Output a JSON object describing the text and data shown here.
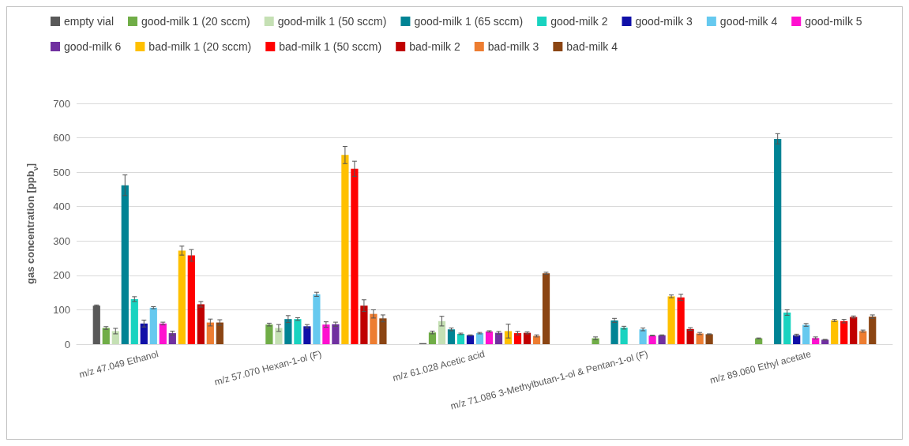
{
  "chart_data": {
    "type": "bar",
    "ylabel": "gas concentration [ppb$_{v}$]",
    "categories": [
      "m/z 47.049 Ethanol",
      "m/z 57.070 Hexan-1-ol (F)",
      "m/z 61.028 Acetic acid",
      "m/z 71.086 3-Methylbutan-1-ol & Pentan-1-ol (F)",
      "m/z 89.060 Ethyl acetate"
    ],
    "ylim": [
      0,
      700
    ],
    "yticks": [
      0,
      100,
      200,
      300,
      400,
      500,
      600,
      700
    ],
    "grid": "y",
    "legend": "top",
    "series": [
      {
        "name": "empty vial",
        "color": "#595959",
        "values": [
          112,
          null,
          3,
          null,
          null
        ],
        "errors": [
          2,
          null,
          null,
          null,
          null
        ]
      },
      {
        "name": "good-milk 1 (20 sccm)",
        "color": "#70ad47",
        "values": [
          47,
          57,
          34,
          17,
          17
        ],
        "errors": [
          4,
          4,
          4,
          4,
          1
        ]
      },
      {
        "name": "good-milk 1 (50 sccm)",
        "color": "#c5e0b4",
        "values": [
          38,
          47,
          67,
          null,
          null
        ],
        "errors": [
          8,
          10,
          14,
          null,
          null
        ]
      },
      {
        "name": "good-milk 1 (65 sccm)",
        "color": "#008394",
        "values": [
          462,
          73,
          43,
          69,
          597
        ],
        "errors": [
          30,
          10,
          4,
          6,
          15
        ]
      },
      {
        "name": "good-milk 2",
        "color": "#19d3c0",
        "values": [
          131,
          73,
          30,
          48,
          92
        ],
        "errors": [
          7,
          4,
          2,
          4,
          8
        ]
      },
      {
        "name": "good-milk 3",
        "color": "#1010a8",
        "values": [
          60,
          52,
          26,
          null,
          26
        ],
        "errors": [
          10,
          5,
          1,
          null,
          3
        ]
      },
      {
        "name": "good-milk 4",
        "color": "#66c9ef",
        "values": [
          106,
          145,
          32,
          43,
          56
        ],
        "errors": [
          3,
          6,
          2,
          4,
          4
        ]
      },
      {
        "name": "good-milk 5",
        "color": "#ff10d0",
        "values": [
          60,
          57,
          37,
          25,
          18
        ],
        "errors": [
          4,
          8,
          2,
          1,
          3
        ]
      },
      {
        "name": "good-milk 6",
        "color": "#7030a0",
        "values": [
          32,
          58,
          33,
          26,
          13
        ],
        "errors": [
          6,
          6,
          4,
          1,
          1
        ]
      },
      {
        "name": "bad-milk 1 (20 sccm)",
        "color": "#ffc000",
        "values": [
          272,
          550,
          38,
          139,
          69
        ],
        "errors": [
          13,
          25,
          20,
          4,
          3
        ]
      },
      {
        "name": "bad-milk 1 (50 sccm)",
        "color": "#ff0000",
        "values": [
          258,
          510,
          32,
          136,
          67
        ],
        "errors": [
          17,
          22,
          5,
          9,
          5
        ]
      },
      {
        "name": "bad-milk 2",
        "color": "#c00000",
        "values": [
          116,
          112,
          33,
          44,
          79
        ],
        "errors": [
          8,
          17,
          3,
          4,
          3
        ]
      },
      {
        "name": "bad-milk 3",
        "color": "#ed7d31",
        "values": [
          63,
          88,
          24,
          31,
          38
        ],
        "errors": [
          10,
          12,
          3,
          3,
          3
        ]
      },
      {
        "name": "bad-milk 4",
        "color": "#8b4513",
        "values": [
          63,
          75,
          206,
          29,
          80
        ],
        "errors": [
          8,
          10,
          3,
          1,
          5
        ]
      }
    ]
  }
}
